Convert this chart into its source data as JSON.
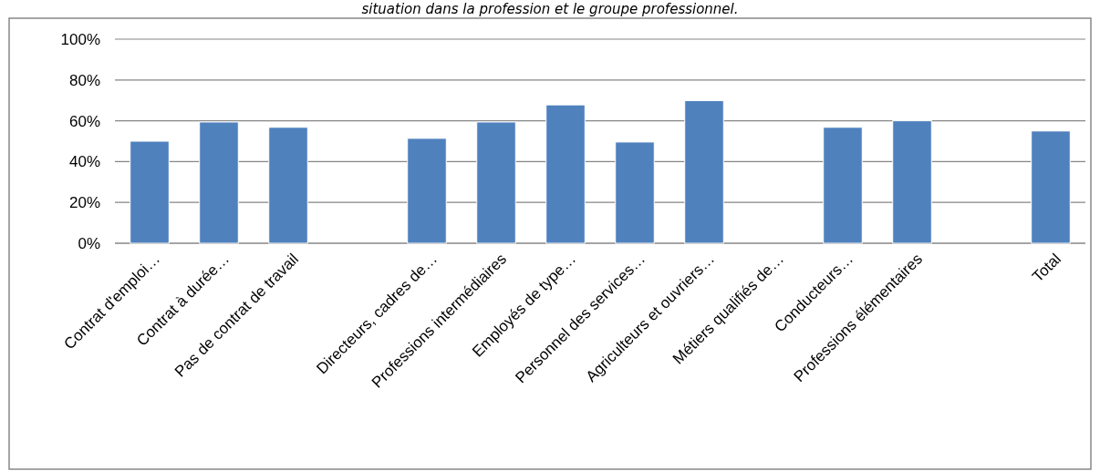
{
  "chart_data": {
    "type": "bar",
    "title": "situation dans la profession et le groupe professionnel.",
    "categories": [
      "Contrat d'emploi…",
      "Contrat à durée…",
      "Pas de contrat de travail",
      null,
      "Directeurs, cadres de…",
      "Professions intermédiaires",
      "Employés de type…",
      "Personnel des services…",
      "Agriculteurs et ouvriers…",
      "Métiers qualifiés de…",
      "Conducteurs…",
      "Professions élémentaires",
      null,
      "Total"
    ],
    "values": [
      50,
      59.4,
      56.8,
      null,
      51.4,
      59.4,
      67.8,
      49.6,
      69.9,
      null,
      56.8,
      60,
      null,
      55
    ],
    "color": "#4f81bd",
    "ylim": [
      0,
      100
    ],
    "yticks": [
      {
        "value": 0,
        "label": "0%"
      },
      {
        "value": 20,
        "label": "20%"
      },
      {
        "value": 40,
        "label": "40%"
      },
      {
        "value": 60,
        "label": "60%"
      },
      {
        "value": 80,
        "label": "80%"
      },
      {
        "value": 100,
        "label": "100%"
      }
    ],
    "grid": true
  }
}
